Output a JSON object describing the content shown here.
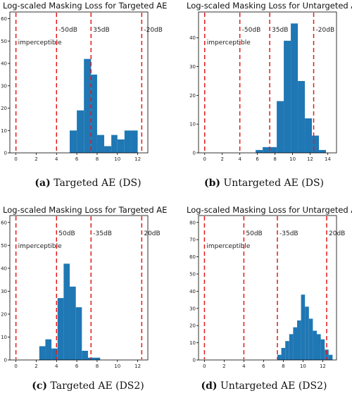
{
  "chart_data": [
    {
      "type": "bar",
      "title": "Log-scaled Masking Loss for Targeted AE",
      "caption_letter": "(a)",
      "caption_text": "Targeted AE (DS)",
      "xlim": [
        -0.6,
        13.0
      ],
      "ylim": [
        0,
        63
      ],
      "xticks": [
        "0",
        "2",
        "4",
        "6",
        "8",
        "10",
        "12"
      ],
      "xtick_values": [
        0,
        2,
        4,
        6,
        8,
        10,
        12
      ],
      "yticks": [
        "0",
        "10",
        "20",
        "30",
        "40",
        "50",
        "60"
      ],
      "ytick_values": [
        0,
        10,
        20,
        30,
        40,
        50,
        60
      ],
      "bins": [
        [
          5.3,
          6.0
        ],
        [
          6.0,
          6.7
        ],
        [
          6.7,
          7.4
        ],
        [
          7.4,
          8.0
        ],
        [
          8.0,
          8.7
        ],
        [
          8.7,
          9.4
        ],
        [
          9.4,
          10.0
        ],
        [
          10.0,
          10.7
        ],
        [
          10.7,
          11.4
        ],
        [
          11.4,
          12.0
        ]
      ],
      "values": [
        10,
        19,
        42,
        35,
        8,
        3,
        8,
        6,
        10,
        10
      ],
      "thresholds": [
        {
          "x": 0,
          "label": "imperceptible",
          "label_side": "right"
        },
        {
          "x": 4,
          "label": "-50dB",
          "label_side": "right"
        },
        {
          "x": 7.4,
          "label": "35dB",
          "label_side": "right"
        },
        {
          "x": 12.4,
          "label": "-20dB",
          "label_side": "right"
        }
      ]
    },
    {
      "type": "bar",
      "title": "Log-scaled Masking Loss for Untargeted AE",
      "caption_letter": "(b)",
      "caption_text": "Untargeted AE (DS)",
      "xlim": [
        -0.7,
        15.0
      ],
      "ylim": [
        0,
        49
      ],
      "xticks": [
        "0",
        "2",
        "4",
        "6",
        "8",
        "10",
        "12",
        "14"
      ],
      "xtick_values": [
        0,
        2,
        4,
        6,
        8,
        10,
        12,
        14
      ],
      "yticks": [
        "0",
        "10",
        "20",
        "30",
        "40"
      ],
      "ytick_values": [
        0,
        10,
        20,
        30,
        40
      ],
      "bins": [
        [
          5.8,
          6.6
        ],
        [
          6.6,
          7.4
        ],
        [
          7.4,
          8.2
        ],
        [
          8.2,
          9.0
        ],
        [
          9.0,
          9.8
        ],
        [
          9.8,
          10.6
        ],
        [
          10.6,
          11.4
        ],
        [
          11.4,
          12.2
        ],
        [
          12.2,
          13.0
        ],
        [
          13.0,
          13.8
        ]
      ],
      "values": [
        1,
        2,
        2,
        18,
        39,
        45,
        25,
        12,
        6,
        1
      ],
      "thresholds": [
        {
          "x": 0,
          "label": "imperceptible",
          "label_side": "right"
        },
        {
          "x": 4,
          "label": "-50dB",
          "label_side": "right"
        },
        {
          "x": 7.4,
          "label": "35dB",
          "label_side": "right"
        },
        {
          "x": 12.4,
          "label": "-20dB",
          "label_side": "right"
        }
      ]
    },
    {
      "type": "bar",
      "title": "Log-scaled Masking Loss for Targeted AE",
      "caption_letter": "(c)",
      "caption_text": "Targeted AE (DS2)",
      "xlim": [
        -0.6,
        13.0
      ],
      "ylim": [
        0,
        63
      ],
      "xticks": [
        "0",
        "2",
        "4",
        "6",
        "8",
        "10",
        "12"
      ],
      "xtick_values": [
        0,
        2,
        4,
        6,
        8,
        10,
        12
      ],
      "yticks": [
        "0",
        "10",
        "20",
        "30",
        "40",
        "50",
        "60"
      ],
      "ytick_values": [
        0,
        10,
        20,
        30,
        40,
        50,
        60
      ],
      "bins": [
        [
          2.3,
          2.9
        ],
        [
          2.9,
          3.5
        ],
        [
          3.5,
          4.1
        ],
        [
          4.1,
          4.7
        ],
        [
          4.7,
          5.3
        ],
        [
          5.3,
          5.9
        ],
        [
          5.9,
          6.5
        ],
        [
          6.5,
          7.1
        ],
        [
          7.1,
          7.7
        ],
        [
          7.7,
          8.3
        ],
        [
          8.3,
          8.9
        ]
      ],
      "values": [
        6,
        9,
        5,
        27,
        42,
        32,
        23,
        4,
        1,
        1,
        0
      ],
      "thresholds": [
        {
          "x": 0,
          "label": "imperceptible",
          "label_side": "right"
        },
        {
          "x": 4,
          "label": "50dB",
          "label_side": "right"
        },
        {
          "x": 7.4,
          "label": "-35dB",
          "label_side": "right"
        },
        {
          "x": 12.4,
          "label": "20dB",
          "label_side": "right"
        }
      ]
    },
    {
      "type": "bar",
      "title": "Log-scaled Masking Loss for Untargeted AE",
      "caption_letter": "(d)",
      "caption_text": "Untargeted AE (DS2)",
      "xlim": [
        -0.6,
        13.4
      ],
      "ylim": [
        0,
        84
      ],
      "xticks": [
        "0",
        "2",
        "4",
        "6",
        "8",
        "10",
        "12"
      ],
      "xtick_values": [
        0,
        2,
        4,
        6,
        8,
        10,
        12
      ],
      "yticks": [
        "0",
        "10",
        "20",
        "30",
        "40",
        "50",
        "60",
        "70",
        "80"
      ],
      "ytick_values": [
        0,
        10,
        20,
        30,
        40,
        50,
        60,
        70,
        80
      ],
      "bins": [
        [
          7.4,
          7.8
        ],
        [
          7.8,
          8.2
        ],
        [
          8.2,
          8.6
        ],
        [
          8.6,
          9.0
        ],
        [
          9.0,
          9.4
        ],
        [
          9.4,
          9.8
        ],
        [
          9.8,
          10.2
        ],
        [
          10.2,
          10.6
        ],
        [
          10.6,
          11.0
        ],
        [
          11.0,
          11.4
        ],
        [
          11.4,
          11.8
        ],
        [
          11.8,
          12.2
        ],
        [
          12.2,
          12.6
        ],
        [
          12.6,
          13.0
        ]
      ],
      "values": [
        3,
        7,
        11,
        15,
        19,
        23,
        38,
        31,
        24,
        17,
        15,
        12,
        6,
        3
      ],
      "thresholds": [
        {
          "x": 0,
          "label": "imperceptible",
          "label_side": "right"
        },
        {
          "x": 4,
          "label": "50dB",
          "label_side": "right"
        },
        {
          "x": 7.4,
          "label": "-35dB",
          "label_side": "right"
        },
        {
          "x": 12.4,
          "label": "20dB",
          "label_side": "right"
        }
      ]
    }
  ],
  "colors": {
    "bar": "#1f77b4",
    "threshold": "#e31a1c",
    "axis": "#000000"
  }
}
